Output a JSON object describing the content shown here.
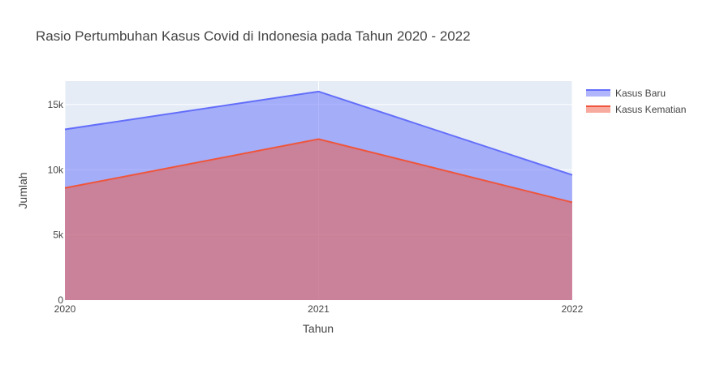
{
  "chart_data": {
    "type": "area",
    "title": "Rasio Pertumbuhan Kasus Covid di Indonesia pada Tahun 2020 - 2022",
    "xlabel": "Tahun",
    "ylabel": "Jumlah",
    "x": [
      2020,
      2021,
      2022
    ],
    "x_tick_labels": [
      "2020",
      "2021",
      "2022"
    ],
    "y_tick_values": [
      0,
      5000,
      10000,
      15000
    ],
    "y_tick_labels": [
      "0",
      "5k",
      "10k",
      "15k"
    ],
    "ylim": [
      0,
      16800
    ],
    "xlim": [
      2020,
      2022
    ],
    "grid": true,
    "legend_position": "top-right",
    "series": [
      {
        "name": "Kasus Baru",
        "values": [
          13100,
          16000,
          9600
        ],
        "color": "#636efa"
      },
      {
        "name": "Kasus Kematian",
        "values": [
          8600,
          12350,
          7500
        ],
        "color": "#ef553b"
      }
    ],
    "plot_background": "#e5ecf6",
    "grid_color": "#ffffff"
  }
}
